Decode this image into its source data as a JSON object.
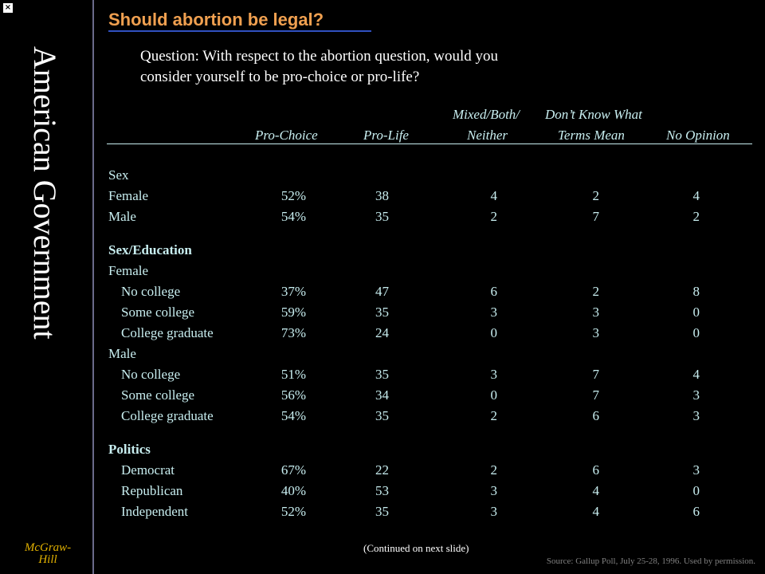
{
  "sidebar": {
    "vertical_title": "American Government",
    "publisher_line1": "McGraw-",
    "publisher_line2": "Hill",
    "close_glyph": "×"
  },
  "slide": {
    "title": "Should abortion be legal?",
    "question_line1": "Question: With respect to the abortion question, would you",
    "question_line2": "consider yourself to be pro-choice or pro-life?"
  },
  "columns": {
    "pro_choice": "Pro-Choice",
    "pro_life": "Pro-Life",
    "mixed_top": "Mixed/Both/",
    "mixed_bottom": "Neither",
    "dontknow_top": "Don’t Know What",
    "dontknow_bottom": "Terms Mean",
    "no_opinion": "No Opinion"
  },
  "rows": [
    {
      "label": "Sex",
      "type": "header",
      "values": [
        "",
        "",
        "",
        "",
        ""
      ]
    },
    {
      "label": "Female",
      "type": "data",
      "values": [
        "52%",
        "38",
        "4",
        "2",
        "4"
      ]
    },
    {
      "label": "Male",
      "type": "data",
      "values": [
        "54%",
        "35",
        "2",
        "7",
        "2"
      ]
    },
    {
      "label": "Sex/Education",
      "type": "bold",
      "values": [
        "",
        "",
        "",
        "",
        ""
      ]
    },
    {
      "label": "Female",
      "type": "header",
      "values": [
        "",
        "",
        "",
        "",
        ""
      ]
    },
    {
      "label": "No college",
      "type": "indent",
      "values": [
        "37%",
        "47",
        "6",
        "2",
        "8"
      ]
    },
    {
      "label": "Some college",
      "type": "indent",
      "values": [
        "59%",
        "35",
        "3",
        "3",
        "0"
      ]
    },
    {
      "label": "College graduate",
      "type": "indent",
      "values": [
        "73%",
        "24",
        "0",
        "3",
        "0"
      ]
    },
    {
      "label": "Male",
      "type": "header",
      "values": [
        "",
        "",
        "",
        "",
        ""
      ]
    },
    {
      "label": "No college",
      "type": "indent",
      "values": [
        "51%",
        "35",
        "3",
        "7",
        "4"
      ]
    },
    {
      "label": "Some college",
      "type": "indent",
      "values": [
        "56%",
        "34",
        "0",
        "7",
        "3"
      ]
    },
    {
      "label": "College graduate",
      "type": "indent",
      "values": [
        "54%",
        "35",
        "2",
        "6",
        "3"
      ]
    },
    {
      "label": "Politics",
      "type": "bold",
      "values": [
        "",
        "",
        "",
        "",
        ""
      ]
    },
    {
      "label": "Democrat",
      "type": "indent",
      "values": [
        "67%",
        "22",
        "2",
        "6",
        "3"
      ]
    },
    {
      "label": "Republican",
      "type": "indent",
      "values": [
        "40%",
        "53",
        "3",
        "4",
        "0"
      ]
    },
    {
      "label": "Independent",
      "type": "indent",
      "values": [
        "52%",
        "35",
        "3",
        "4",
        "6"
      ]
    }
  ],
  "footer": {
    "continued": "(Continued on next slide)",
    "source": "Source: Gallup Poll, July 25-28, 1996. Used by permission."
  }
}
